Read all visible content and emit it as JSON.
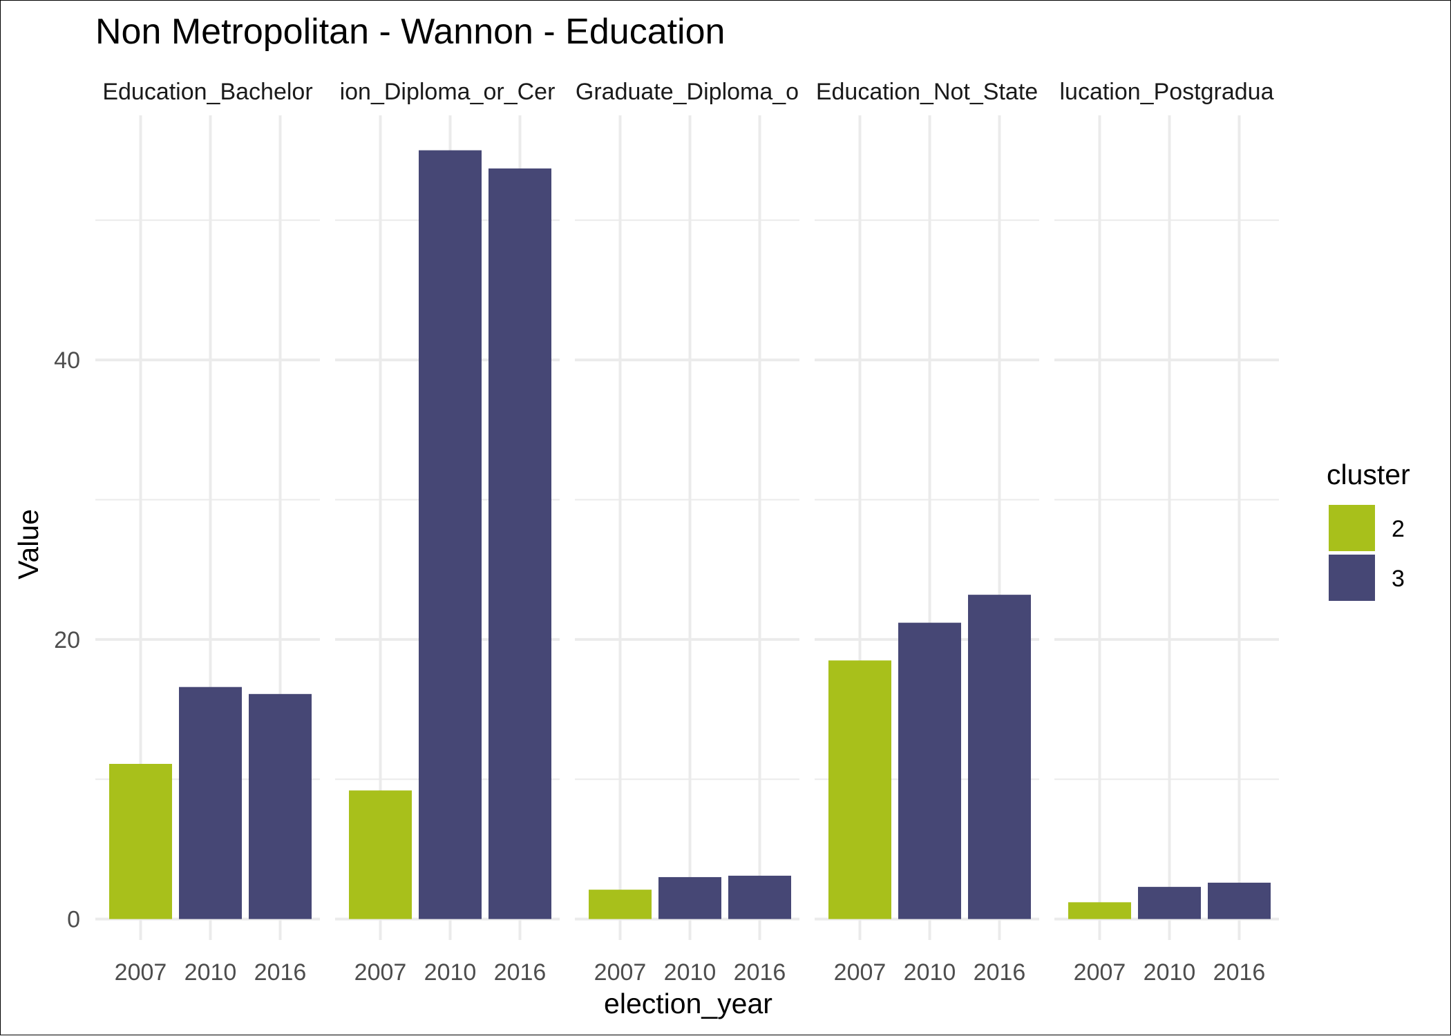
{
  "chart_data": {
    "type": "bar",
    "title": "Non Metropolitan - Wannon - Education",
    "xlabel": "election_year",
    "ylabel": "Value",
    "ylim": [
      -1.5,
      57.5
    ],
    "yticks": [
      0,
      20,
      40
    ],
    "grid": true,
    "legend": {
      "title": "cluster",
      "placement": "right",
      "entries": [
        {
          "label": "2",
          "color": "#a8c01b"
        },
        {
          "label": "3",
          "color": "#464775"
        }
      ]
    },
    "categories": [
      "2007",
      "2010",
      "2016"
    ],
    "cluster_by_year": [
      "2",
      "3",
      "3"
    ],
    "facets": [
      {
        "label": "Education_Bachelor",
        "values": [
          11.1,
          16.6,
          16.1
        ]
      },
      {
        "label": "ion_Diploma_or_Cer",
        "values": [
          9.2,
          55.0,
          53.7
        ]
      },
      {
        "label": "Graduate_Diploma_o",
        "values": [
          2.1,
          3.0,
          3.1
        ]
      },
      {
        "label": "Education_Not_State",
        "values": [
          18.5,
          21.2,
          23.2
        ]
      },
      {
        "label": "lucation_Postgradua",
        "values": [
          1.2,
          2.3,
          2.6
        ]
      }
    ]
  }
}
